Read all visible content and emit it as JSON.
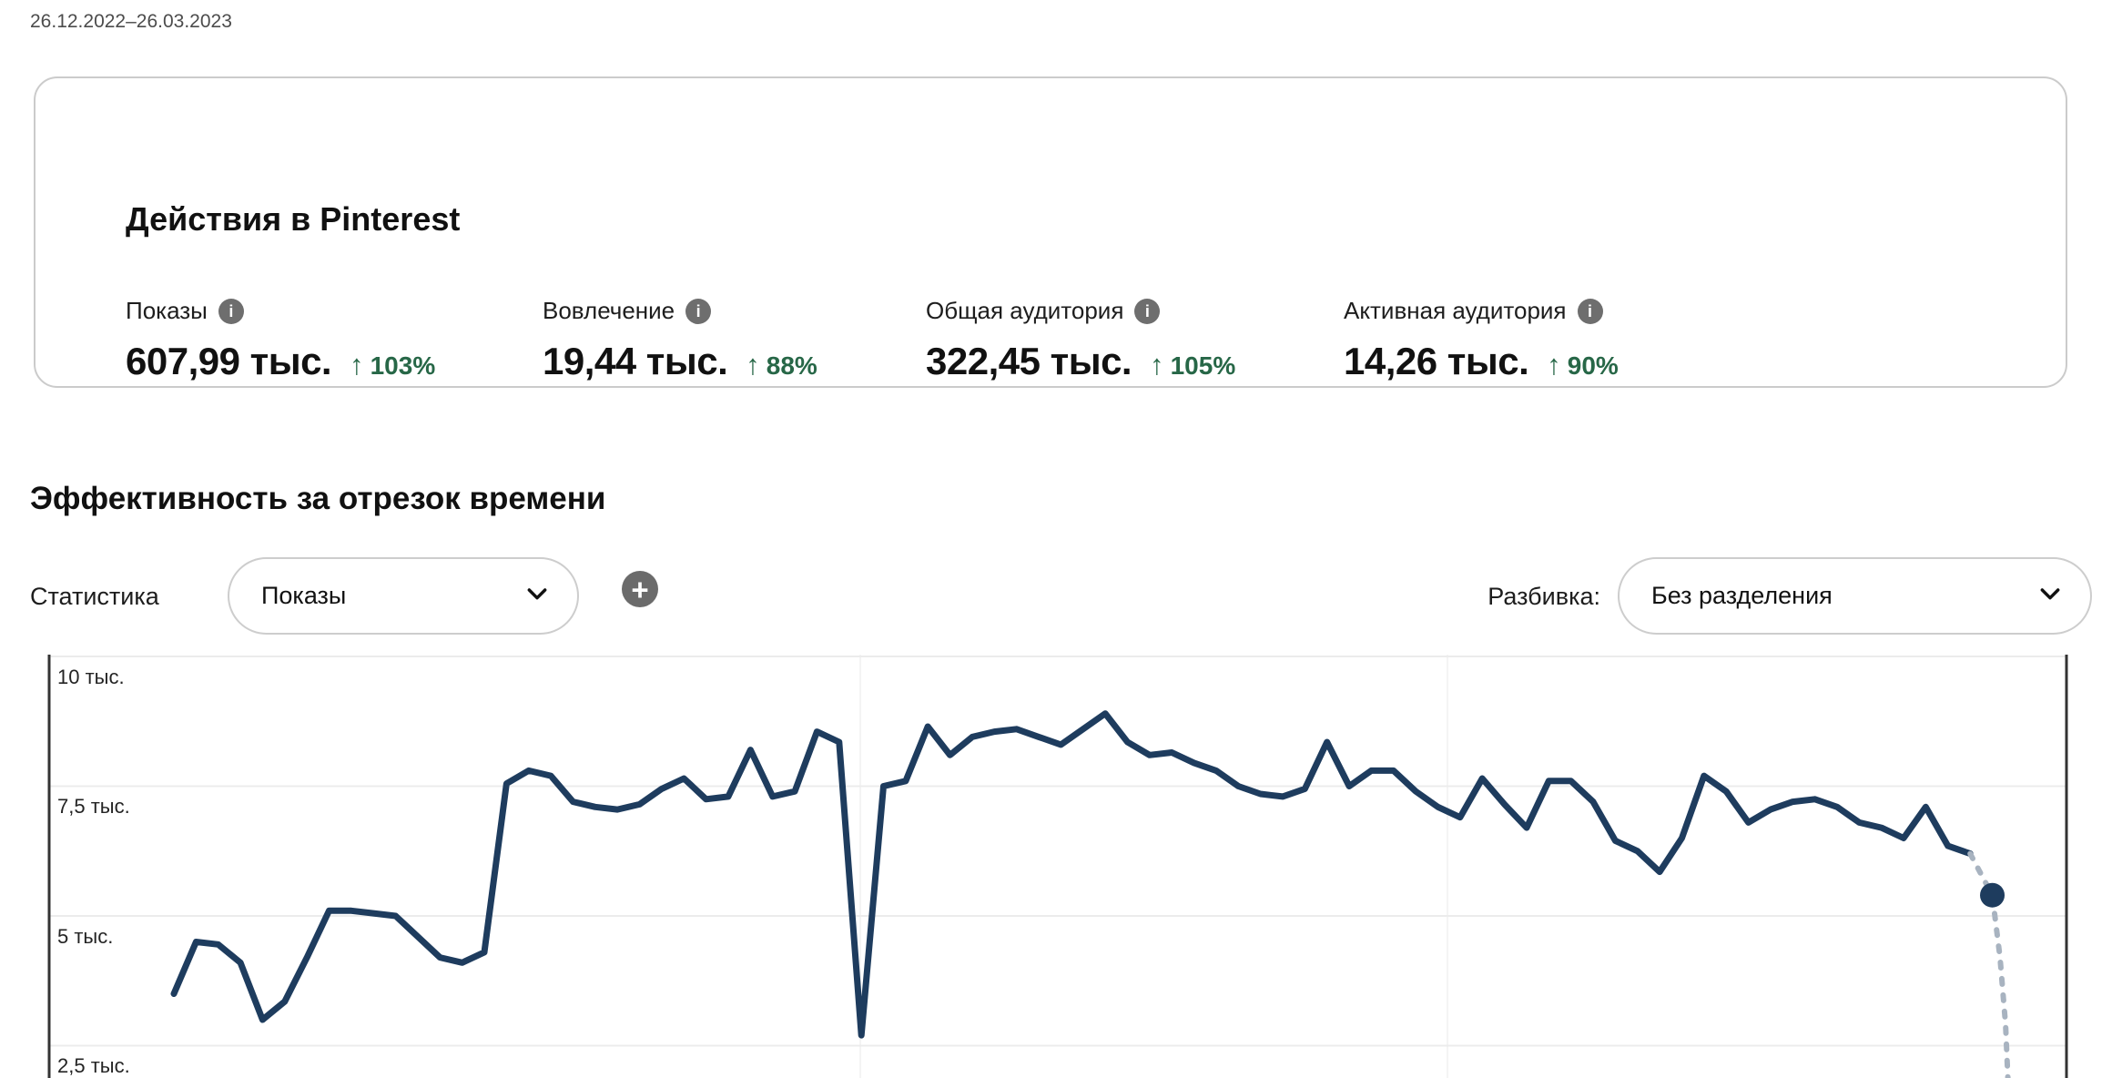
{
  "date_range": "26.12.2022–26.03.2023",
  "colors": {
    "accent_navy": "#1e3c5e",
    "positive_green": "#276747",
    "projection_gray": "#a8b3c0",
    "grid_gray": "#ececec",
    "axis_dark": "#333333"
  },
  "ui": {
    "up_arrow": "↑",
    "plus": "+",
    "info": "i"
  },
  "card": {
    "title": "Действия в Pinterest",
    "metrics": [
      {
        "label": "Показы",
        "value": "607,99 тыс.",
        "delta": "103%"
      },
      {
        "label": "Вовлечение",
        "value": "19,44 тыс.",
        "delta": "88%"
      },
      {
        "label": "Общая аудитория",
        "value": "322,45 тыс.",
        "delta": "105%"
      },
      {
        "label": "Активная аудитория",
        "value": "14,26 тыс.",
        "delta": "90%"
      }
    ]
  },
  "section": {
    "title": "Эффективность за отрезок времени",
    "stat_label": "Статистика",
    "stat_value": "Показы",
    "split_label": "Разбивка:",
    "split_value": "Без разделения"
  },
  "chart_data": {
    "type": "line",
    "title": "Эффективность за отрезок времени",
    "metric": "Показы",
    "unit": "тыс.",
    "x_range": {
      "start_date": "26.12.2022",
      "end_date": "26.03.2023",
      "x_tick_labels_visible": false
    },
    "grid": "horizontal",
    "legend": "none",
    "y_ticks": [
      {
        "label": "10 тыс.",
        "value": 10
      },
      {
        "label": "7,5 тыс.",
        "value": 7.5
      },
      {
        "label": "5 тыс.",
        "value": 5
      },
      {
        "label": "2,5 тыс.",
        "value": 2.5
      }
    ],
    "series": [
      {
        "name": "Показы",
        "style": "solid",
        "values_thousands": [
          3.5,
          4.5,
          4.45,
          4.1,
          3.0,
          3.35,
          4.2,
          5.1,
          5.1,
          5.05,
          5.0,
          4.6,
          4.2,
          4.1,
          4.3,
          7.55,
          7.8,
          7.7,
          7.2,
          7.1,
          7.05,
          7.15,
          7.45,
          7.65,
          7.25,
          7.3,
          8.2,
          7.3,
          7.4,
          8.55,
          8.35,
          2.7,
          7.5,
          7.6,
          8.65,
          8.1,
          8.45,
          8.55,
          8.6,
          8.45,
          8.3,
          8.6,
          8.9,
          8.35,
          8.1,
          8.15,
          7.95,
          7.8,
          7.5,
          7.35,
          7.3,
          7.45,
          8.35,
          7.5,
          7.8,
          7.8,
          7.4,
          7.1,
          6.9,
          7.65,
          7.15,
          6.7,
          7.6,
          7.6,
          7.2,
          6.45,
          6.25,
          5.85,
          6.5,
          7.7,
          7.4,
          6.8,
          7.05,
          7.2,
          7.25,
          7.1,
          6.8,
          6.7,
          6.5,
          7.1,
          6.35,
          6.2
        ]
      }
    ],
    "projection": {
      "style": "dashed",
      "note": "trailing incomplete-data segment curving down off chart",
      "values_thousands": [
        6.2,
        5.4,
        4.2,
        2.9,
        1.4
      ],
      "x_step_fractions": [
        0,
        1,
        1.35,
        1.6,
        1.75
      ],
      "dot_index": 1,
      "current_point_value_thousands": 5.4
    }
  }
}
